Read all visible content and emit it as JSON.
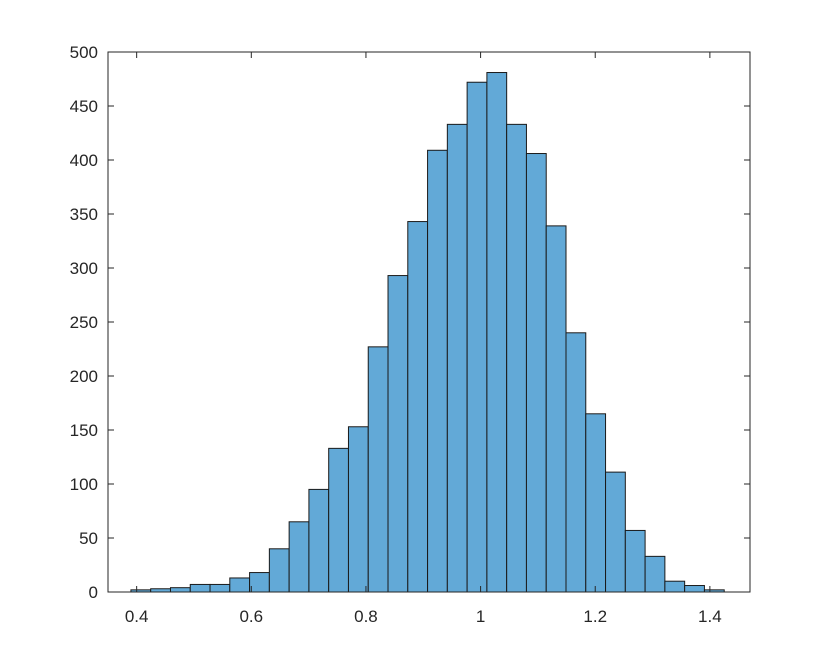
{
  "chart_data": {
    "type": "bar",
    "title": "",
    "xlabel": "",
    "ylabel": "",
    "xlim": [
      0.35,
      1.47
    ],
    "ylim": [
      0,
      500
    ],
    "bin_width": 0.0345,
    "bin_start": 0.39,
    "values": [
      2,
      3,
      4,
      7,
      7,
      13,
      18,
      40,
      65,
      95,
      133,
      153,
      227,
      293,
      343,
      409,
      433,
      472,
      481,
      433,
      406,
      339,
      240,
      165,
      111,
      57,
      33,
      10,
      6,
      2
    ],
    "x_ticks": [
      {
        "value": 0.4,
        "label": "0.4"
      },
      {
        "value": 0.6,
        "label": "0.6"
      },
      {
        "value": 0.8,
        "label": "0.8"
      },
      {
        "value": 1.0,
        "label": "1"
      },
      {
        "value": 1.2,
        "label": "1.2"
      },
      {
        "value": 1.4,
        "label": "1.4"
      }
    ],
    "y_ticks": [
      {
        "value": 0,
        "label": "0"
      },
      {
        "value": 50,
        "label": "50"
      },
      {
        "value": 100,
        "label": "100"
      },
      {
        "value": 150,
        "label": "150"
      },
      {
        "value": 200,
        "label": "200"
      },
      {
        "value": 250,
        "label": "250"
      },
      {
        "value": 300,
        "label": "300"
      },
      {
        "value": 350,
        "label": "350"
      },
      {
        "value": 400,
        "label": "400"
      },
      {
        "value": 450,
        "label": "450"
      },
      {
        "value": 500,
        "label": "500"
      }
    ],
    "bar_color": "#62a9d7",
    "edge_color": "#1a1a1a",
    "grid": false,
    "legend": "none"
  }
}
